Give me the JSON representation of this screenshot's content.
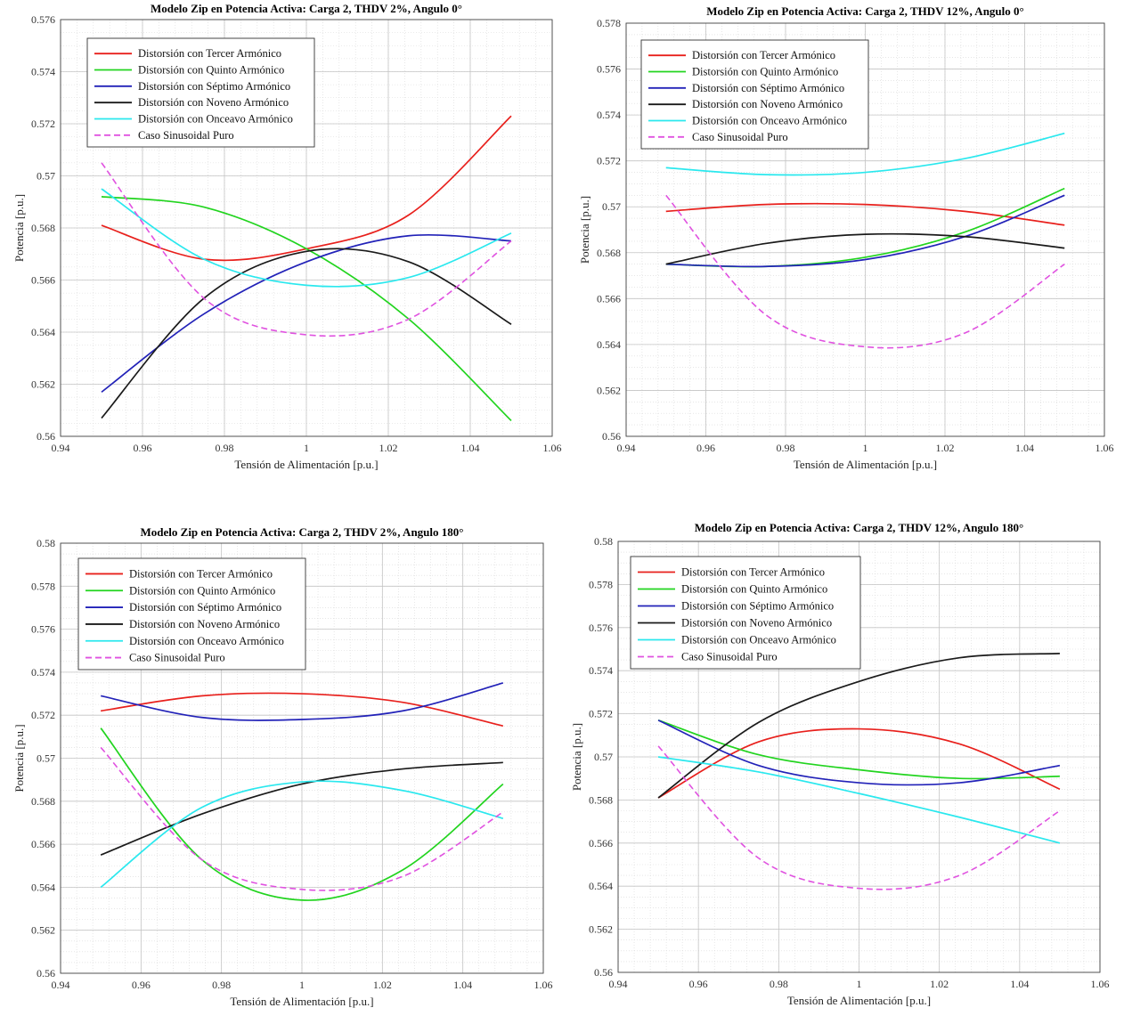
{
  "colors": {
    "tercer": "#e8201c",
    "quinto": "#22d41f",
    "septimo": "#2222b8",
    "noveno": "#1a1a1a",
    "onceavo": "#2ae8ee",
    "sinusoidal": "#e052e0"
  },
  "chart_data": [
    {
      "type": "line",
      "title": "Modelo Zip en Potencia Activa: Carga 2, THDV 2%, Angulo 0°",
      "xlabel": "Tensión de Alimentación [p.u.]",
      "ylabel": "Potencia [p.u.]",
      "xlim": [
        0.94,
        1.06
      ],
      "ylim": [
        0.56,
        0.576
      ],
      "xticks": [
        "0.94",
        "0.96",
        "0.98",
        "1",
        "1.02",
        "1.04",
        "1.06"
      ],
      "yticks": [
        "0.56",
        "0.562",
        "0.564",
        "0.566",
        "0.568",
        "0.57",
        "0.572",
        "0.574",
        "0.576"
      ],
      "grid": true,
      "legend": "top-left",
      "x": [
        0.95,
        0.975,
        1.0,
        1.025,
        1.05
      ],
      "series": [
        {
          "name": "Distorsión con Tercer Armónico",
          "key": "tercer",
          "values": [
            0.5681,
            0.5668,
            0.5672,
            0.5685,
            0.5723
          ]
        },
        {
          "name": "Distorsión con Quinto Armónico",
          "key": "quinto",
          "values": [
            0.5692,
            0.5688,
            0.5672,
            0.5645,
            0.5606
          ]
        },
        {
          "name": "Distorsión con Séptimo Armónico",
          "key": "septimo",
          "values": [
            0.5617,
            0.5647,
            0.5667,
            0.5677,
            0.5675
          ]
        },
        {
          "name": "Distorsión con Noveno Armónico",
          "key": "noveno",
          "values": [
            0.5607,
            0.5653,
            0.5671,
            0.5667,
            0.5643
          ]
        },
        {
          "name": "Distorsión con Onceavo Armónico",
          "key": "onceavo",
          "values": [
            0.5695,
            0.5668,
            0.5658,
            0.5661,
            0.5678
          ]
        },
        {
          "name": "Caso Sinusoidal Puro",
          "key": "sinusoidal",
          "dashed": true,
          "values": [
            0.5705,
            0.5653,
            0.5639,
            0.5645,
            0.5675
          ]
        }
      ]
    },
    {
      "type": "line",
      "title": "Modelo Zip en Potencia Activa: Carga 2, THDV 12%, Angulo 0°",
      "xlabel": "Tensión de Alimentación [p.u.]",
      "ylabel": "Potencia [p.u.]",
      "xlim": [
        0.94,
        1.06
      ],
      "ylim": [
        0.56,
        0.578
      ],
      "xticks": [
        "0.94",
        "0.96",
        "0.98",
        "1",
        "1.02",
        "1.04",
        "1.06"
      ],
      "yticks": [
        "0.56",
        "0.562",
        "0.564",
        "0.566",
        "0.568",
        "0.57",
        "0.572",
        "0.574",
        "0.576",
        "0.578"
      ],
      "grid": true,
      "legend": "top-left",
      "x": [
        0.95,
        0.975,
        1.0,
        1.025,
        1.05
      ],
      "series": [
        {
          "name": "Distorsión con Tercer Armónico",
          "key": "tercer",
          "values": [
            0.5698,
            0.5701,
            0.5701,
            0.5698,
            0.5692
          ]
        },
        {
          "name": "Distorsión con Quinto Armónico",
          "key": "quinto",
          "values": [
            0.5675,
            0.5674,
            0.5678,
            0.5689,
            0.5708
          ]
        },
        {
          "name": "Distorsión con Séptimo Armónico",
          "key": "septimo",
          "values": [
            0.5675,
            0.5674,
            0.5677,
            0.5687,
            0.5705
          ]
        },
        {
          "name": "Distorsión con Noveno Armónico",
          "key": "noveno",
          "values": [
            0.5675,
            0.5684,
            0.5688,
            0.5687,
            0.5682
          ]
        },
        {
          "name": "Distorsión con Onceavo Armónico",
          "key": "onceavo",
          "values": [
            0.5717,
            0.5714,
            0.5715,
            0.5721,
            0.5732
          ]
        },
        {
          "name": "Caso Sinusoidal Puro",
          "key": "sinusoidal",
          "dashed": true,
          "values": [
            0.5705,
            0.5653,
            0.5639,
            0.5645,
            0.5675
          ]
        }
      ]
    },
    {
      "type": "line",
      "title": "Modelo Zip en Potencia Activa: Carga 2, THDV 2%, Angulo 180°",
      "xlabel": "Tensión de Alimentación [p.u.]",
      "ylabel": "Potencia [p.u.]",
      "xlim": [
        0.94,
        1.06
      ],
      "ylim": [
        0.56,
        0.58
      ],
      "xticks": [
        "0.94",
        "0.96",
        "0.98",
        "1",
        "1.02",
        "1.04",
        "1.06"
      ],
      "yticks": [
        "0.56",
        "0.562",
        "0.564",
        "0.566",
        "0.568",
        "0.57",
        "0.572",
        "0.574",
        "0.576",
        "0.578",
        "0.58"
      ],
      "grid": true,
      "legend": "top-left",
      "x": [
        0.95,
        0.975,
        1.0,
        1.025,
        1.05
      ],
      "series": [
        {
          "name": "Distorsión con Tercer Armónico",
          "key": "tercer",
          "values": [
            0.5722,
            0.5729,
            0.573,
            0.5726,
            0.5715
          ]
        },
        {
          "name": "Distorsión con Quinto Armónico",
          "key": "quinto",
          "values": [
            0.5714,
            0.5653,
            0.5634,
            0.5648,
            0.5688
          ]
        },
        {
          "name": "Distorsión con Séptimo Armónico",
          "key": "septimo",
          "values": [
            0.5729,
            0.5719,
            0.5718,
            0.5722,
            0.5735
          ]
        },
        {
          "name": "Distorsión con Noveno Armónico",
          "key": "noveno",
          "values": [
            0.5655,
            0.5674,
            0.5688,
            0.5695,
            0.5698
          ]
        },
        {
          "name": "Distorsión con Onceavo Armónico",
          "key": "onceavo",
          "values": [
            0.564,
            0.5677,
            0.5689,
            0.5685,
            0.5672
          ]
        },
        {
          "name": "Caso Sinusoidal Puro",
          "key": "sinusoidal",
          "dashed": true,
          "values": [
            0.5705,
            0.5653,
            0.5639,
            0.5645,
            0.5675
          ]
        }
      ]
    },
    {
      "type": "line",
      "title": "Modelo Zip en Potencia Activa: Carga 2, THDV 12%, Angulo 180°",
      "xlabel": "Tensión de Alimentación [p.u.]",
      "ylabel": "Potencia [p.u.]",
      "xlim": [
        0.94,
        1.06
      ],
      "ylim": [
        0.56,
        0.58
      ],
      "xticks": [
        "0.94",
        "0.96",
        "0.98",
        "1",
        "1.02",
        "1.04",
        "1.06"
      ],
      "yticks": [
        "0.56",
        "0.562",
        "0.564",
        "0.566",
        "0.568",
        "0.57",
        "0.572",
        "0.574",
        "0.576",
        "0.578",
        "0.58"
      ],
      "grid": true,
      "legend": "top-left",
      "x": [
        0.95,
        0.975,
        1.0,
        1.025,
        1.05
      ],
      "series": [
        {
          "name": "Distorsión con Tercer Armónico",
          "key": "tercer",
          "values": [
            0.5681,
            0.5707,
            0.5713,
            0.5706,
            0.5685
          ]
        },
        {
          "name": "Distorsión con Quinto Armónico",
          "key": "quinto",
          "values": [
            0.5717,
            0.5701,
            0.5694,
            0.569,
            0.5691
          ]
        },
        {
          "name": "Distorsión con Séptimo Armónico",
          "key": "septimo",
          "values": [
            0.5717,
            0.5696,
            0.5688,
            0.5688,
            0.5696
          ]
        },
        {
          "name": "Distorsión con Noveno Armónico",
          "key": "noveno",
          "values": [
            0.5681,
            0.5716,
            0.5735,
            0.5746,
            0.5748
          ]
        },
        {
          "name": "Distorsión con Onceavo Armónico",
          "key": "onceavo",
          "values": [
            0.57,
            0.5693,
            0.5683,
            0.5672,
            0.566
          ]
        },
        {
          "name": "Caso Sinusoidal Puro",
          "key": "sinusoidal",
          "dashed": true,
          "values": [
            0.5705,
            0.5653,
            0.5639,
            0.5645,
            0.5675
          ]
        }
      ]
    }
  ]
}
